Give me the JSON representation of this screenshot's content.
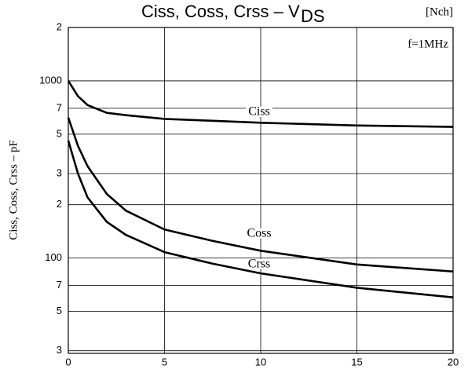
{
  "chart_data": {
    "type": "line",
    "title": "Ciss, Coss, Crss – V",
    "title_subscript": "DS",
    "corner_label": "[Nch]",
    "annotation": "f=1MHz",
    "ylabel": "Ciss, Coss, Crss – pF",
    "x": [
      0,
      0.5,
      1,
      2,
      3,
      5,
      7.5,
      10,
      15,
      20
    ],
    "series": [
      {
        "name": "Ciss",
        "color": "#000000",
        "values": [
          1000,
          820,
          730,
          660,
          640,
          610,
          595,
          580,
          560,
          550
        ]
      },
      {
        "name": "Coss",
        "color": "#000000",
        "values": [
          620,
          430,
          330,
          230,
          185,
          145,
          125,
          110,
          92,
          84
        ]
      },
      {
        "name": "Crss",
        "color": "#000000",
        "values": [
          460,
          300,
          220,
          160,
          135,
          108,
          93,
          82,
          68,
          60
        ]
      }
    ],
    "xlim": [
      0,
      20
    ],
    "xticks": [
      0,
      5,
      10,
      15,
      20
    ],
    "ylim": [
      29,
      2000
    ],
    "ylog": true,
    "yticks": [
      {
        "value": 2000,
        "label": "2"
      },
      1000,
      {
        "value": 700,
        "label": "7"
      },
      {
        "value": 500,
        "label": "5"
      },
      {
        "value": 300,
        "label": "3"
      },
      {
        "value": 200,
        "label": "2"
      },
      100,
      {
        "value": 70,
        "label": "7"
      },
      {
        "value": 50,
        "label": "5"
      },
      {
        "value": 30,
        "label": "3"
      }
    ],
    "grid": true
  }
}
